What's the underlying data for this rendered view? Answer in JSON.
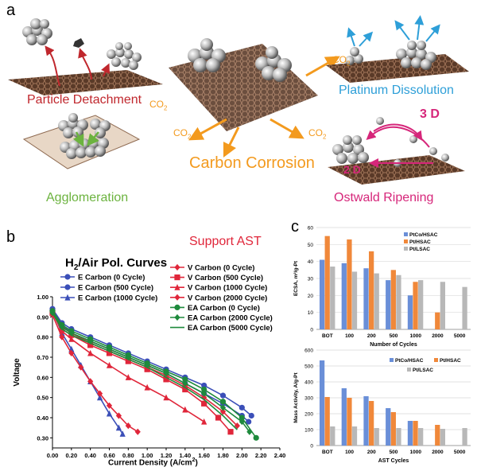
{
  "panel_a": {
    "letter": "a",
    "labels": {
      "particle_detachment": "Particle Detachment",
      "agglomeration": "Agglomeration",
      "carbon_corrosion": "Carbon Corrosion",
      "platinum_dissolution": "Platinum Dissolution",
      "ostwald_ripening": "Ostwald Ripening",
      "three_d": "3 D",
      "two_d": "2 D",
      "co2": "CO",
      "co2_sub": "2"
    },
    "colors": {
      "red": "#c0272d",
      "green": "#6cb33f",
      "orange": "#f39a1e",
      "blue": "#2e9fd8",
      "magenta": "#d6267a"
    }
  },
  "panel_b": {
    "letter": "b",
    "title_h": "H",
    "title_sub": "2",
    "title_rest": "/Air Pol. Curves",
    "support": "Support AST",
    "chart_data": {
      "type": "line",
      "xlabel": "Current Density (A/cm",
      "xlabel_sup": "2",
      "xlabel_end": ")",
      "ylabel": "Voltage",
      "xlim": [
        0,
        2.4
      ],
      "ylim": [
        0.25,
        1.0
      ],
      "xticks": [
        "0.00",
        "0.20",
        "0.40",
        "0.60",
        "0.80",
        "1.00",
        "1.20",
        "1.40",
        "1.60",
        "1.80",
        "2.00",
        "2.20",
        "2.40"
      ],
      "yticks": [
        "1.00",
        "0.90",
        "0.80",
        "0.70",
        "0.60",
        "0.50",
        "0.40",
        "0.30"
      ],
      "series": [
        {
          "name": "E Carbon (0 Cycle)",
          "color": "#3b4fb8",
          "marker": "circle",
          "x": [
            0,
            0.1,
            0.2,
            0.4,
            0.6,
            0.8,
            1.0,
            1.2,
            1.4,
            1.6,
            1.8,
            2.0,
            2.1
          ],
          "y": [
            0.94,
            0.87,
            0.84,
            0.8,
            0.76,
            0.72,
            0.68,
            0.64,
            0.6,
            0.56,
            0.51,
            0.45,
            0.41
          ]
        },
        {
          "name": "E Carbon (500 Cycle)",
          "color": "#3b4fb8",
          "marker": "circle",
          "x": [
            0,
            0.1,
            0.2,
            0.4,
            0.6,
            0.8,
            1.0,
            1.2,
            1.4,
            1.6,
            1.8,
            2.0,
            2.07
          ],
          "y": [
            0.93,
            0.86,
            0.82,
            0.78,
            0.74,
            0.7,
            0.66,
            0.62,
            0.57,
            0.52,
            0.47,
            0.41,
            0.38
          ]
        },
        {
          "name": "E Carbon (1000 Cycle)",
          "color": "#3b4fb8",
          "marker": "triangle",
          "x": [
            0,
            0.1,
            0.2,
            0.3,
            0.4,
            0.5,
            0.6,
            0.7,
            0.74
          ],
          "y": [
            0.93,
            0.82,
            0.74,
            0.66,
            0.58,
            0.5,
            0.42,
            0.35,
            0.32
          ]
        },
        {
          "name": "V Carbon (0 Cycle)",
          "color": "#e0263a",
          "marker": "diamond",
          "x": [
            0,
            0.1,
            0.2,
            0.4,
            0.6,
            0.8,
            1.0,
            1.2,
            1.4,
            1.6,
            1.8,
            1.95
          ],
          "y": [
            0.93,
            0.85,
            0.82,
            0.77,
            0.73,
            0.69,
            0.65,
            0.61,
            0.56,
            0.5,
            0.43,
            0.36
          ]
        },
        {
          "name": "V Carbon (500 Cycle)",
          "color": "#e0263a",
          "marker": "square",
          "x": [
            0,
            0.1,
            0.2,
            0.4,
            0.6,
            0.8,
            1.0,
            1.2,
            1.4,
            1.6,
            1.75,
            1.88
          ],
          "y": [
            0.92,
            0.84,
            0.81,
            0.76,
            0.72,
            0.68,
            0.64,
            0.59,
            0.54,
            0.47,
            0.4,
            0.33
          ]
        },
        {
          "name": "V Carbon (1000 Cycle)",
          "color": "#e0263a",
          "marker": "triangle",
          "x": [
            0,
            0.1,
            0.2,
            0.4,
            0.6,
            0.8,
            1.0,
            1.2,
            1.4,
            1.6
          ],
          "y": [
            0.92,
            0.83,
            0.79,
            0.72,
            0.66,
            0.6,
            0.55,
            0.5,
            0.44,
            0.38
          ]
        },
        {
          "name": "V Carbon (2000 Cycle)",
          "color": "#e0263a",
          "marker": "diamond",
          "x": [
            0,
            0.1,
            0.2,
            0.3,
            0.4,
            0.5,
            0.6,
            0.7,
            0.8,
            0.9
          ],
          "y": [
            0.91,
            0.8,
            0.72,
            0.65,
            0.58,
            0.52,
            0.46,
            0.41,
            0.36,
            0.33
          ]
        },
        {
          "name": "EA Carbon (0 Cycle)",
          "color": "#1e8a3c",
          "marker": "circle",
          "x": [
            0,
            0.1,
            0.2,
            0.4,
            0.6,
            0.8,
            1.0,
            1.2,
            1.4,
            1.6,
            1.8,
            2.0,
            2.15
          ],
          "y": [
            0.93,
            0.86,
            0.83,
            0.79,
            0.75,
            0.71,
            0.67,
            0.63,
            0.59,
            0.54,
            0.48,
            0.4,
            0.3
          ]
        },
        {
          "name": "EA Carbon (2000 Cycle)",
          "color": "#1e8a3c",
          "marker": "diamond",
          "x": [
            0,
            0.1,
            0.2,
            0.4,
            0.6,
            0.8,
            1.0,
            1.2,
            1.4,
            1.6,
            1.8,
            2.0,
            2.08
          ],
          "y": [
            0.92,
            0.85,
            0.82,
            0.78,
            0.74,
            0.7,
            0.66,
            0.62,
            0.57,
            0.52,
            0.45,
            0.38,
            0.33
          ]
        },
        {
          "name": "EA Carbon (5000 Cycle)",
          "color": "#1e8a3c",
          "marker": "none",
          "x": [
            0,
            0.1,
            0.2,
            0.4,
            0.6,
            0.8,
            1.0,
            1.2,
            1.4,
            1.6,
            1.8,
            1.95
          ],
          "y": [
            0.92,
            0.84,
            0.81,
            0.77,
            0.73,
            0.69,
            0.65,
            0.6,
            0.55,
            0.49,
            0.41,
            0.34
          ]
        }
      ]
    }
  },
  "panel_c": {
    "letter": "c",
    "chart_data": [
      {
        "type": "bar",
        "ylabel": "ECSA, m²/g-Pt",
        "xlabel": "Number of Cycles",
        "ylim": [
          0,
          60
        ],
        "yticks": [
          "0",
          "10",
          "20",
          "30",
          "40",
          "50",
          "60"
        ],
        "categories": [
          "BOT",
          "100",
          "200",
          "500",
          "1000",
          "2000",
          "5000"
        ],
        "series": [
          {
            "name": "PtCo/HSAC",
            "color": "#6a8fd8",
            "values": [
              41,
              39,
              36,
              29,
              20,
              null,
              null
            ]
          },
          {
            "name": "Pt/HSAC",
            "color": "#f0883a",
            "values": [
              55,
              53,
              46,
              35,
              28,
              10,
              null
            ]
          },
          {
            "name": "Pt/LSAC",
            "color": "#b8b8b8",
            "values": [
              37,
              34,
              33,
              32,
              29,
              28,
              25
            ]
          }
        ]
      },
      {
        "type": "bar",
        "ylabel": "Mass Activity, A/g-Pt",
        "xlabel": "AST Cycles",
        "ylim": [
          0,
          600
        ],
        "yticks": [
          "0",
          "100",
          "200",
          "300",
          "400",
          "500",
          "600"
        ],
        "categories": [
          "BOT",
          "100",
          "200",
          "500",
          "1000",
          "2000",
          "5000"
        ],
        "series": [
          {
            "name": "PtCo/HSAC",
            "color": "#6a8fd8",
            "values": [
              535,
              360,
              310,
              235,
              155,
              null,
              null
            ]
          },
          {
            "name": "Pt/HSAC",
            "color": "#f0883a",
            "values": [
              305,
              300,
              280,
              210,
              155,
              130,
              null
            ]
          },
          {
            "name": "Pt/LSAC",
            "color": "#b8b8b8",
            "values": [
              120,
              120,
              110,
              110,
              110,
              105,
              110
            ]
          }
        ]
      }
    ]
  }
}
